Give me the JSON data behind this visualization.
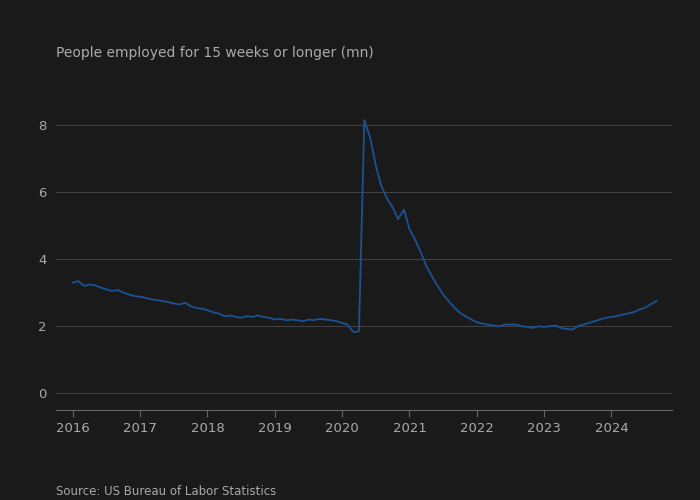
{
  "title": "People employed for 15 weeks or longer (mn)",
  "source": "Source: US Bureau of Labor Statistics",
  "line_color": "#1a5294",
  "background_color": "#1a1a1a",
  "axes_bg_color": "#1a1a1a",
  "grid_color": "#444444",
  "text_color": "#aaaaaa",
  "spine_color": "#666666",
  "x_ticks": [
    2016,
    2017,
    2018,
    2019,
    2020,
    2021,
    2022,
    2023,
    2024
  ],
  "y_ticks": [
    0,
    2,
    4,
    6,
    8
  ],
  "ylim": [
    -0.5,
    9.2
  ],
  "xlim": [
    2015.75,
    2024.9
  ],
  "data": [
    [
      2016.0,
      3.3
    ],
    [
      2016.08,
      3.35
    ],
    [
      2016.17,
      3.2
    ],
    [
      2016.25,
      3.25
    ],
    [
      2016.33,
      3.22
    ],
    [
      2016.42,
      3.15
    ],
    [
      2016.5,
      3.1
    ],
    [
      2016.58,
      3.05
    ],
    [
      2016.67,
      3.08
    ],
    [
      2016.75,
      3.0
    ],
    [
      2016.83,
      2.95
    ],
    [
      2016.92,
      2.9
    ],
    [
      2017.0,
      2.88
    ],
    [
      2017.08,
      2.85
    ],
    [
      2017.17,
      2.8
    ],
    [
      2017.25,
      2.78
    ],
    [
      2017.33,
      2.75
    ],
    [
      2017.42,
      2.72
    ],
    [
      2017.5,
      2.68
    ],
    [
      2017.58,
      2.65
    ],
    [
      2017.67,
      2.7
    ],
    [
      2017.75,
      2.6
    ],
    [
      2017.83,
      2.55
    ],
    [
      2017.92,
      2.52
    ],
    [
      2018.0,
      2.48
    ],
    [
      2018.08,
      2.42
    ],
    [
      2018.17,
      2.38
    ],
    [
      2018.25,
      2.3
    ],
    [
      2018.33,
      2.32
    ],
    [
      2018.42,
      2.28
    ],
    [
      2018.5,
      2.25
    ],
    [
      2018.58,
      2.3
    ],
    [
      2018.67,
      2.28
    ],
    [
      2018.75,
      2.32
    ],
    [
      2018.83,
      2.28
    ],
    [
      2018.92,
      2.25
    ],
    [
      2019.0,
      2.2
    ],
    [
      2019.08,
      2.22
    ],
    [
      2019.17,
      2.18
    ],
    [
      2019.25,
      2.2
    ],
    [
      2019.33,
      2.18
    ],
    [
      2019.42,
      2.15
    ],
    [
      2019.5,
      2.2
    ],
    [
      2019.58,
      2.18
    ],
    [
      2019.67,
      2.22
    ],
    [
      2019.75,
      2.2
    ],
    [
      2019.83,
      2.18
    ],
    [
      2019.92,
      2.15
    ],
    [
      2020.0,
      2.1
    ],
    [
      2020.08,
      2.05
    ],
    [
      2020.17,
      1.82
    ],
    [
      2020.25,
      1.85
    ],
    [
      2020.33,
      8.15
    ],
    [
      2020.42,
      7.6
    ],
    [
      2020.5,
      6.8
    ],
    [
      2020.58,
      6.2
    ],
    [
      2020.67,
      5.8
    ],
    [
      2020.75,
      5.55
    ],
    [
      2020.83,
      5.2
    ],
    [
      2020.92,
      5.48
    ],
    [
      2021.0,
      4.9
    ],
    [
      2021.08,
      4.6
    ],
    [
      2021.17,
      4.2
    ],
    [
      2021.25,
      3.8
    ],
    [
      2021.33,
      3.5
    ],
    [
      2021.42,
      3.2
    ],
    [
      2021.5,
      2.95
    ],
    [
      2021.58,
      2.75
    ],
    [
      2021.67,
      2.55
    ],
    [
      2021.75,
      2.4
    ],
    [
      2021.83,
      2.3
    ],
    [
      2021.92,
      2.2
    ],
    [
      2022.0,
      2.12
    ],
    [
      2022.08,
      2.08
    ],
    [
      2022.17,
      2.05
    ],
    [
      2022.25,
      2.02
    ],
    [
      2022.33,
      2.0
    ],
    [
      2022.42,
      2.05
    ],
    [
      2022.5,
      2.05
    ],
    [
      2022.58,
      2.05
    ],
    [
      2022.67,
      2.0
    ],
    [
      2022.75,
      1.98
    ],
    [
      2022.83,
      1.95
    ],
    [
      2022.92,
      2.0
    ],
    [
      2023.0,
      1.98
    ],
    [
      2023.08,
      2.0
    ],
    [
      2023.17,
      2.02
    ],
    [
      2023.25,
      1.95
    ],
    [
      2023.33,
      1.92
    ],
    [
      2023.42,
      1.9
    ],
    [
      2023.5,
      2.0
    ],
    [
      2023.58,
      2.05
    ],
    [
      2023.67,
      2.1
    ],
    [
      2023.75,
      2.15
    ],
    [
      2023.83,
      2.2
    ],
    [
      2023.92,
      2.25
    ],
    [
      2024.0,
      2.28
    ],
    [
      2024.08,
      2.3
    ],
    [
      2024.17,
      2.35
    ],
    [
      2024.25,
      2.38
    ],
    [
      2024.33,
      2.42
    ],
    [
      2024.42,
      2.5
    ],
    [
      2024.5,
      2.55
    ],
    [
      2024.58,
      2.65
    ],
    [
      2024.67,
      2.75
    ]
  ]
}
